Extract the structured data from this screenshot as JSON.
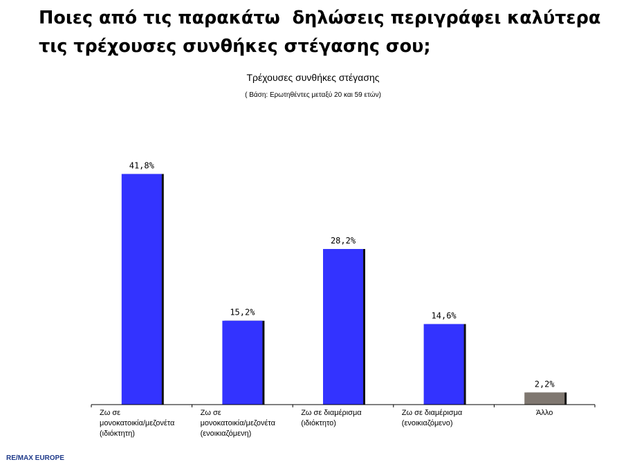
{
  "slide": {
    "title": "Ποιες από τις παρακάτω  δηλώσεις περιγράφει καλύτερα τις τρέχουσες συνθήκες στέγασης σου;"
  },
  "chart_data": {
    "type": "bar",
    "title": "Τρέχουσες συνθήκες στέγασης",
    "subtitle": "( Βάση: Ερωτηθέντες μεταξύ 20 και 59 ετών)",
    "categories": [
      [
        "Ζω σε",
        "μονοκατοικία/μεζονέτα",
        "(ιδιόκτητη)"
      ],
      [
        "Ζω σε",
        "μονοκατοικία/μεζονέτα",
        "(ενοικιαζόμενη)"
      ],
      [
        "Ζω σε διαμέρισμα",
        "(ιδιόκτητο)"
      ],
      [
        "Ζω σε διαμέρισμα",
        "(ενοικιαζόμενο)"
      ],
      [
        "Άλλο"
      ]
    ],
    "values": [
      41.8,
      15.2,
      28.2,
      14.6,
      2.2
    ],
    "value_labels": [
      "41,8%",
      "15,2%",
      "28,2%",
      "14,6%",
      "2,2%"
    ],
    "bar_colors": [
      "#3333ff",
      "#3333ff",
      "#3333ff",
      "#3333ff",
      "#7f7770"
    ],
    "ylim": [
      0,
      45
    ],
    "grid": false,
    "legend": "none"
  },
  "footer": {
    "source": "RE/MAX EUROPE"
  }
}
